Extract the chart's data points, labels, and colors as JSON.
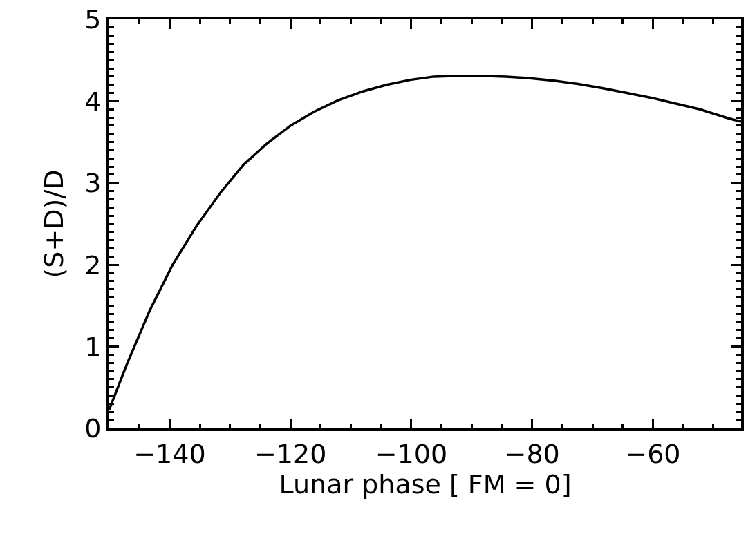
{
  "chart_data": {
    "type": "line",
    "xlabel": "Lunar phase [ FM = 0]",
    "ylabel": "(S+D)/D",
    "x": [
      -150,
      -147.1,
      -143.3,
      -139.5,
      -135.5,
      -131.6,
      -127.8,
      -123.9,
      -120.0,
      -116.1,
      -112.1,
      -108.0,
      -104.1,
      -100.2,
      -96.3,
      -92.2,
      -88.4,
      -84.3,
      -80.4,
      -76.4,
      -72.4,
      -68.4,
      -64.3,
      -60.2,
      -56.2,
      -52.2,
      -47.5,
      -45.4
    ],
    "series": [
      {
        "color": "#000000",
        "values": [
          0.23,
          0.78,
          1.44,
          2.0,
          2.48,
          2.88,
          3.22,
          3.48,
          3.7,
          3.87,
          4.01,
          4.12,
          4.2,
          4.26,
          4.3,
          4.31,
          4.31,
          4.3,
          4.28,
          4.25,
          4.21,
          4.16,
          4.1,
          4.04,
          3.97,
          3.9,
          3.79,
          3.75
        ]
      }
    ],
    "xlim": [
      -150,
      -45.4
    ],
    "xticks": [
      -140,
      -120,
      -100,
      -80,
      -60
    ],
    "ylim": [
      0,
      5
    ],
    "yticks": [
      0,
      1,
      2,
      3,
      4,
      5
    ],
    "marker": "none",
    "line_style": "solid"
  }
}
